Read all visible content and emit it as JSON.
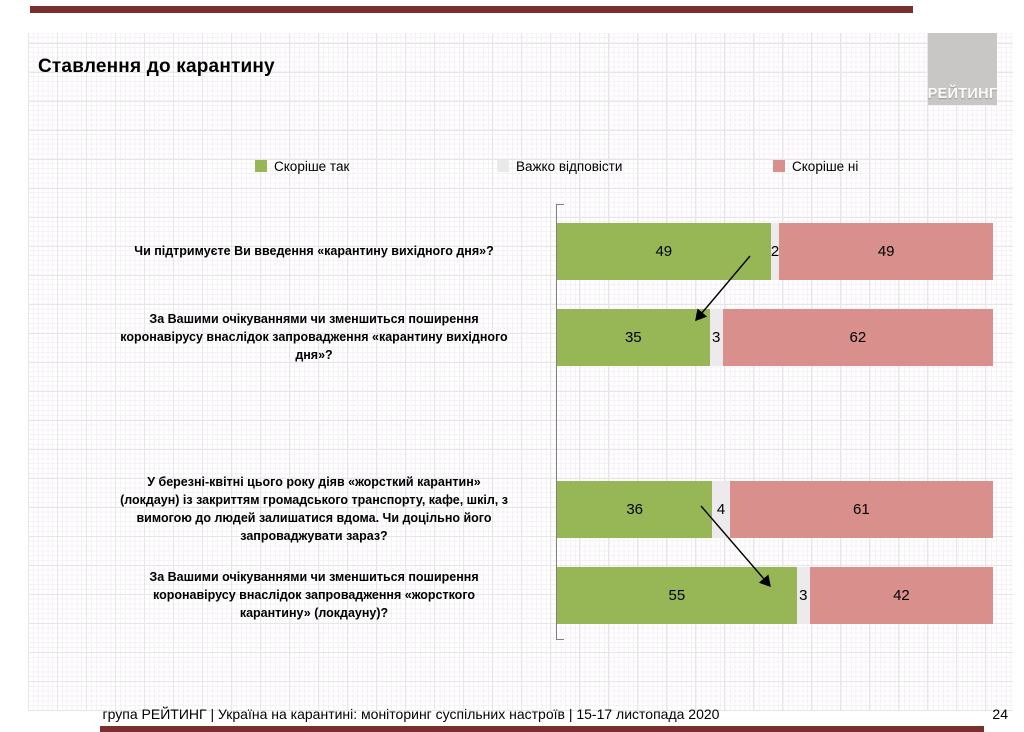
{
  "slide": {
    "title": "Ставлення до карантину",
    "logo_text": "РЕЙТИНГ",
    "footer": "група РЕЙТИНГ | Україна на карантині: моніторинг суспільних настроїв | 15-17 листопада 2020",
    "page_number": "24",
    "accent_color": "#7a2f2f",
    "logo_bg_color": "#c8c7c6"
  },
  "legend": [
    {
      "label": "Скоріше так",
      "color": "#97b757"
    },
    {
      "label": "Важко відповісти",
      "color": "#e9e9e9"
    },
    {
      "label": "Скоріше ні",
      "color": "#d9908d"
    }
  ],
  "chart_data": {
    "type": "bar",
    "orientation": "horizontal-stacked",
    "xlim": [
      0,
      100
    ],
    "grid": "paper-grid-background",
    "legend_position": "top",
    "categories": [
      "Чи підтримуєте Ви введення «карантину вихідного дня»?",
      "За Вашими очікуваннями чи зменшиться поширення\nкоронавірусу внаслідок запровадження «карантину вихідного\nдня»?",
      "У березні-квітні цього року діяв «жорсткий карантин»\n(локдаун) із закриттям громадського транспорту, кафе, шкіл, з\nвимогою до людей залишатися вдома. Чи доцільно його\nзапроваджувати зараз?",
      "За Вашими очікуваннями чи зменшиться поширення\nкоронавірусу внаслідок запровадження «жорсткого\nкарантину» (локдауну)?"
    ],
    "series": [
      {
        "name": "Скоріше так",
        "color": "#97b757",
        "values": [
          49,
          35,
          36,
          55
        ]
      },
      {
        "name": "Важко відповісти",
        "color": "#eceaec",
        "values": [
          2,
          3,
          4,
          3
        ]
      },
      {
        "name": "Скоріше ні",
        "color": "#d9908d",
        "values": [
          49,
          62,
          61,
          42
        ]
      }
    ],
    "annotations": [
      {
        "type": "arrow",
        "from_bar": 1,
        "to_bar": 2,
        "meaning": "49 -> 35"
      },
      {
        "type": "arrow",
        "from_bar": 3,
        "to_bar": 4,
        "meaning": "36 -> 55"
      }
    ]
  }
}
